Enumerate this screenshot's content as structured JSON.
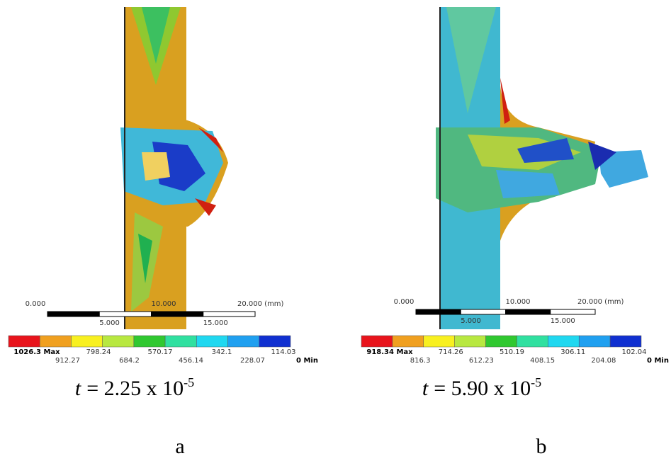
{
  "panels": [
    {
      "scale": {
        "labels": [
          "0.000",
          "5.000",
          "10.000",
          "15.000",
          "20.000 (mm)"
        ]
      },
      "legend": {
        "labels": [
          "1026.3 Max",
          "912.27",
          "798.24",
          "684.2",
          "570.17",
          "456.14",
          "342.1",
          "228.07",
          "114.03",
          "0 Min"
        ]
      },
      "time": {
        "symbol": "t",
        "text": "= 2.25 x 10",
        "exponent": "-5"
      },
      "caption": "a"
    },
    {
      "scale": {
        "labels": [
          "0.000",
          "5.000",
          "10.000",
          "15.000",
          "20.000 (mm)"
        ]
      },
      "legend": {
        "labels": [
          "918.34 Max",
          "816.3",
          "714.26",
          "612.23",
          "510.19",
          "408.15",
          "306.11",
          "204.08",
          "102.04",
          "0 Min"
        ]
      },
      "time": {
        "symbol": "t",
        "text": "= 5.90 x 10",
        "exponent": "-5"
      },
      "caption": "b"
    }
  ]
}
